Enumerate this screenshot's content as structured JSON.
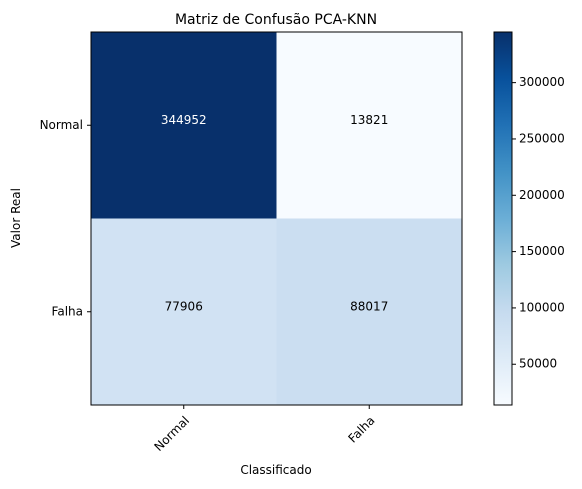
{
  "chart_data": {
    "type": "heatmap",
    "title": "Matriz de Confusão PCA-KNN",
    "xlabel": "Classificado",
    "ylabel": "Valor Real",
    "x_categories": [
      "Normal",
      "Falha"
    ],
    "y_categories": [
      "Normal",
      "Falha"
    ],
    "values": [
      [
        344952,
        13821
      ],
      [
        77906,
        88017
      ]
    ],
    "colormap": "Blues",
    "color_range": [
      13821,
      344952
    ],
    "colorbar_ticks": [
      50000,
      100000,
      150000,
      200000,
      250000,
      300000
    ],
    "colorbar_tick_labels": [
      "50000",
      "100000",
      "150000",
      "200000",
      "250000",
      "300000"
    ],
    "text_colors": {
      "dark_cell": "#ffffff",
      "light_cell": "#000000"
    }
  }
}
